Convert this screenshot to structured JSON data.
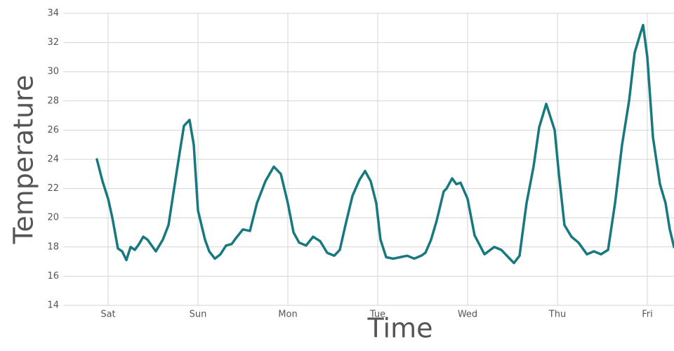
{
  "chart_data": {
    "type": "line",
    "x_label": "Time",
    "y_label": "Temperature",
    "x": [
      -0.125,
      -0.0625,
      0,
      0.047,
      0.109,
      0.156,
      0.203,
      0.25,
      0.297,
      0.344,
      0.391,
      0.438,
      0.531,
      0.609,
      0.672,
      0.734,
      0.797,
      0.844,
      0.906,
      0.953,
      1,
      1.078,
      1.125,
      1.188,
      1.25,
      1.313,
      1.375,
      1.422,
      1.5,
      1.578,
      1.656,
      1.75,
      1.844,
      1.922,
      2,
      2.063,
      2.125,
      2.203,
      2.281,
      2.359,
      2.438,
      2.516,
      2.578,
      2.641,
      2.719,
      2.797,
      2.859,
      2.922,
      2.984,
      3.031,
      3.094,
      3.172,
      3.25,
      3.328,
      3.406,
      3.484,
      3.531,
      3.594,
      3.656,
      3.734,
      3.766,
      3.828,
      3.875,
      3.922,
      4,
      4.078,
      4.188,
      4.297,
      4.375,
      4.453,
      4.516,
      4.578,
      4.656,
      4.734,
      4.797,
      4.875,
      4.969,
      5.016,
      5.078,
      5.156,
      5.234,
      5.328,
      5.406,
      5.484,
      5.563,
      5.641,
      5.719,
      5.797,
      5.859,
      5.922,
      5.953,
      6,
      6.063,
      6.141,
      6.203,
      6.25,
      6.297
    ],
    "series": [
      {
        "name": "Temperature",
        "color": "#17797f",
        "values": [
          24,
          22.5,
          21.3,
          20,
          17.9,
          17.7,
          17.1,
          18,
          17.8,
          18.2,
          18.7,
          18.5,
          17.7,
          18.5,
          19.5,
          22,
          24.5,
          26.3,
          26.7,
          25,
          20.5,
          18.5,
          17.7,
          17.2,
          17.5,
          18.1,
          18.2,
          18.6,
          19.2,
          19.1,
          21,
          22.5,
          23.5,
          23,
          21,
          19,
          18.3,
          18.1,
          18.7,
          18.4,
          17.6,
          17.4,
          17.8,
          19.5,
          21.5,
          22.6,
          23.2,
          22.5,
          21,
          18.5,
          17.3,
          17.2,
          17.3,
          17.4,
          17.2,
          17.4,
          17.6,
          18.5,
          19.8,
          21.8,
          22,
          22.7,
          22.3,
          22.4,
          21.3,
          18.8,
          17.5,
          18,
          17.8,
          17.3,
          16.9,
          17.4,
          21,
          23.5,
          26.2,
          27.8,
          26,
          23,
          19.5,
          18.7,
          18.3,
          17.5,
          17.7,
          17.5,
          17.8,
          21,
          25,
          28,
          31.3,
          32.6,
          33.2,
          31,
          25.5,
          22.3,
          21,
          19.2,
          18
        ]
      }
    ],
    "xlim": [
      -0.5,
      6.297
    ],
    "xticks": [
      {
        "value": 0,
        "label": "Sat"
      },
      {
        "value": 1,
        "label": "Sun"
      },
      {
        "value": 2,
        "label": "Mon"
      },
      {
        "value": 3,
        "label": "Tue"
      },
      {
        "value": 4,
        "label": "Wed"
      },
      {
        "value": 5,
        "label": "Thu"
      },
      {
        "value": 6,
        "label": "Fri"
      }
    ],
    "ylim": [
      14,
      34
    ],
    "yticks": [
      14,
      16,
      18,
      20,
      22,
      24,
      26,
      28,
      30,
      32,
      34
    ],
    "grid": true
  }
}
